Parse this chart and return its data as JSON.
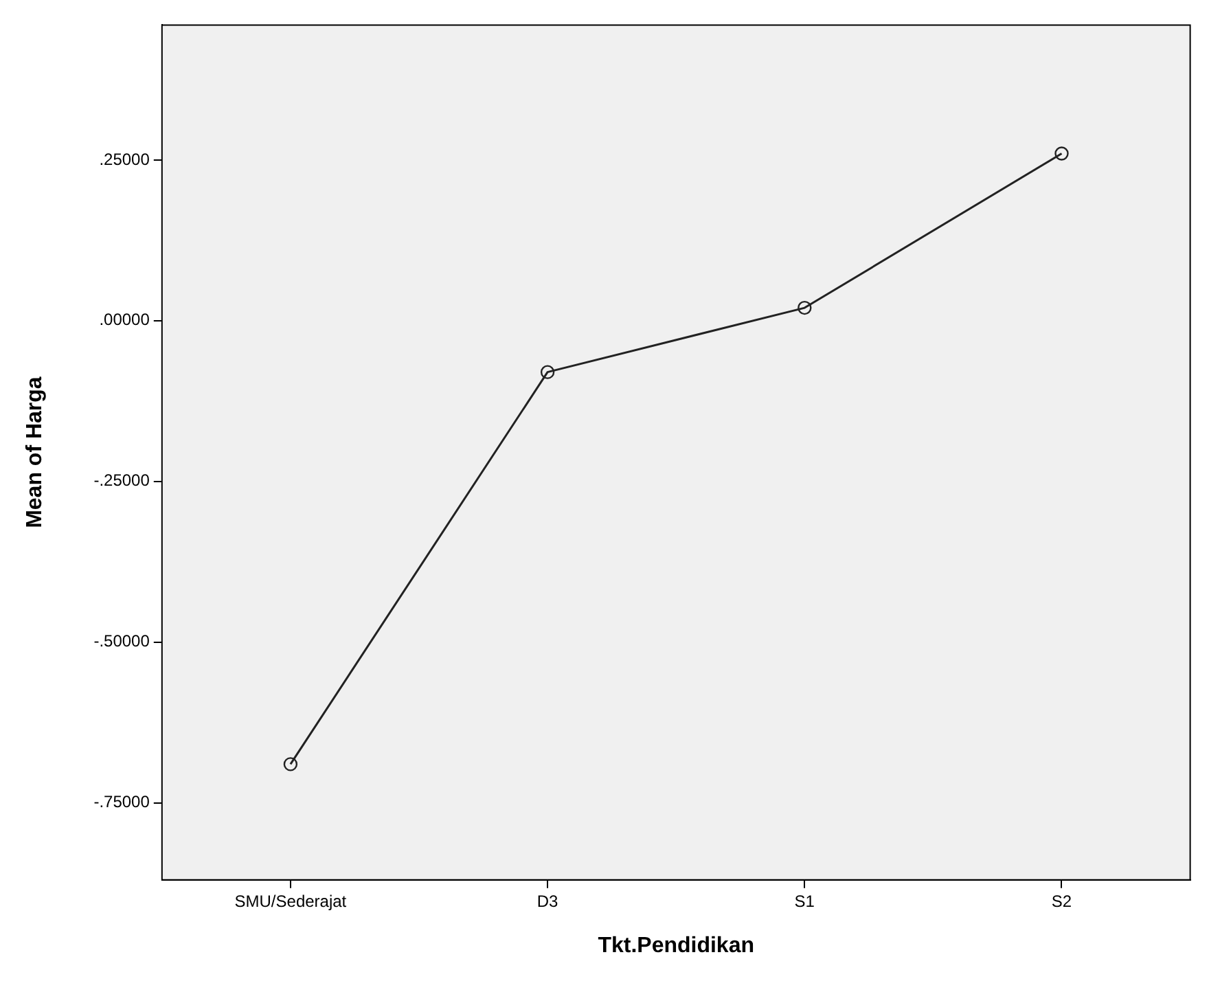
{
  "chart_data": {
    "type": "line",
    "xlabel": "Tkt.Pendidikan",
    "ylabel": "Mean of Harga",
    "categories": [
      "SMU/Sederajat",
      "D3",
      "S1",
      "S2"
    ],
    "values": [
      -0.69,
      -0.08,
      0.02,
      0.26
    ],
    "color": "#222222",
    "marker": "circle",
    "line_style": "solid",
    "legend": false,
    "ylim": [
      -0.87,
      0.46
    ],
    "yticks": [
      {
        "value": -0.75,
        "label": "-.75000"
      },
      {
        "value": -0.5,
        "label": "-.50000"
      },
      {
        "value": -0.25,
        "label": "-.25000"
      },
      {
        "value": 0,
        "label": ".00000"
      },
      {
        "value": 0.25,
        "label": ".25000"
      }
    ]
  }
}
